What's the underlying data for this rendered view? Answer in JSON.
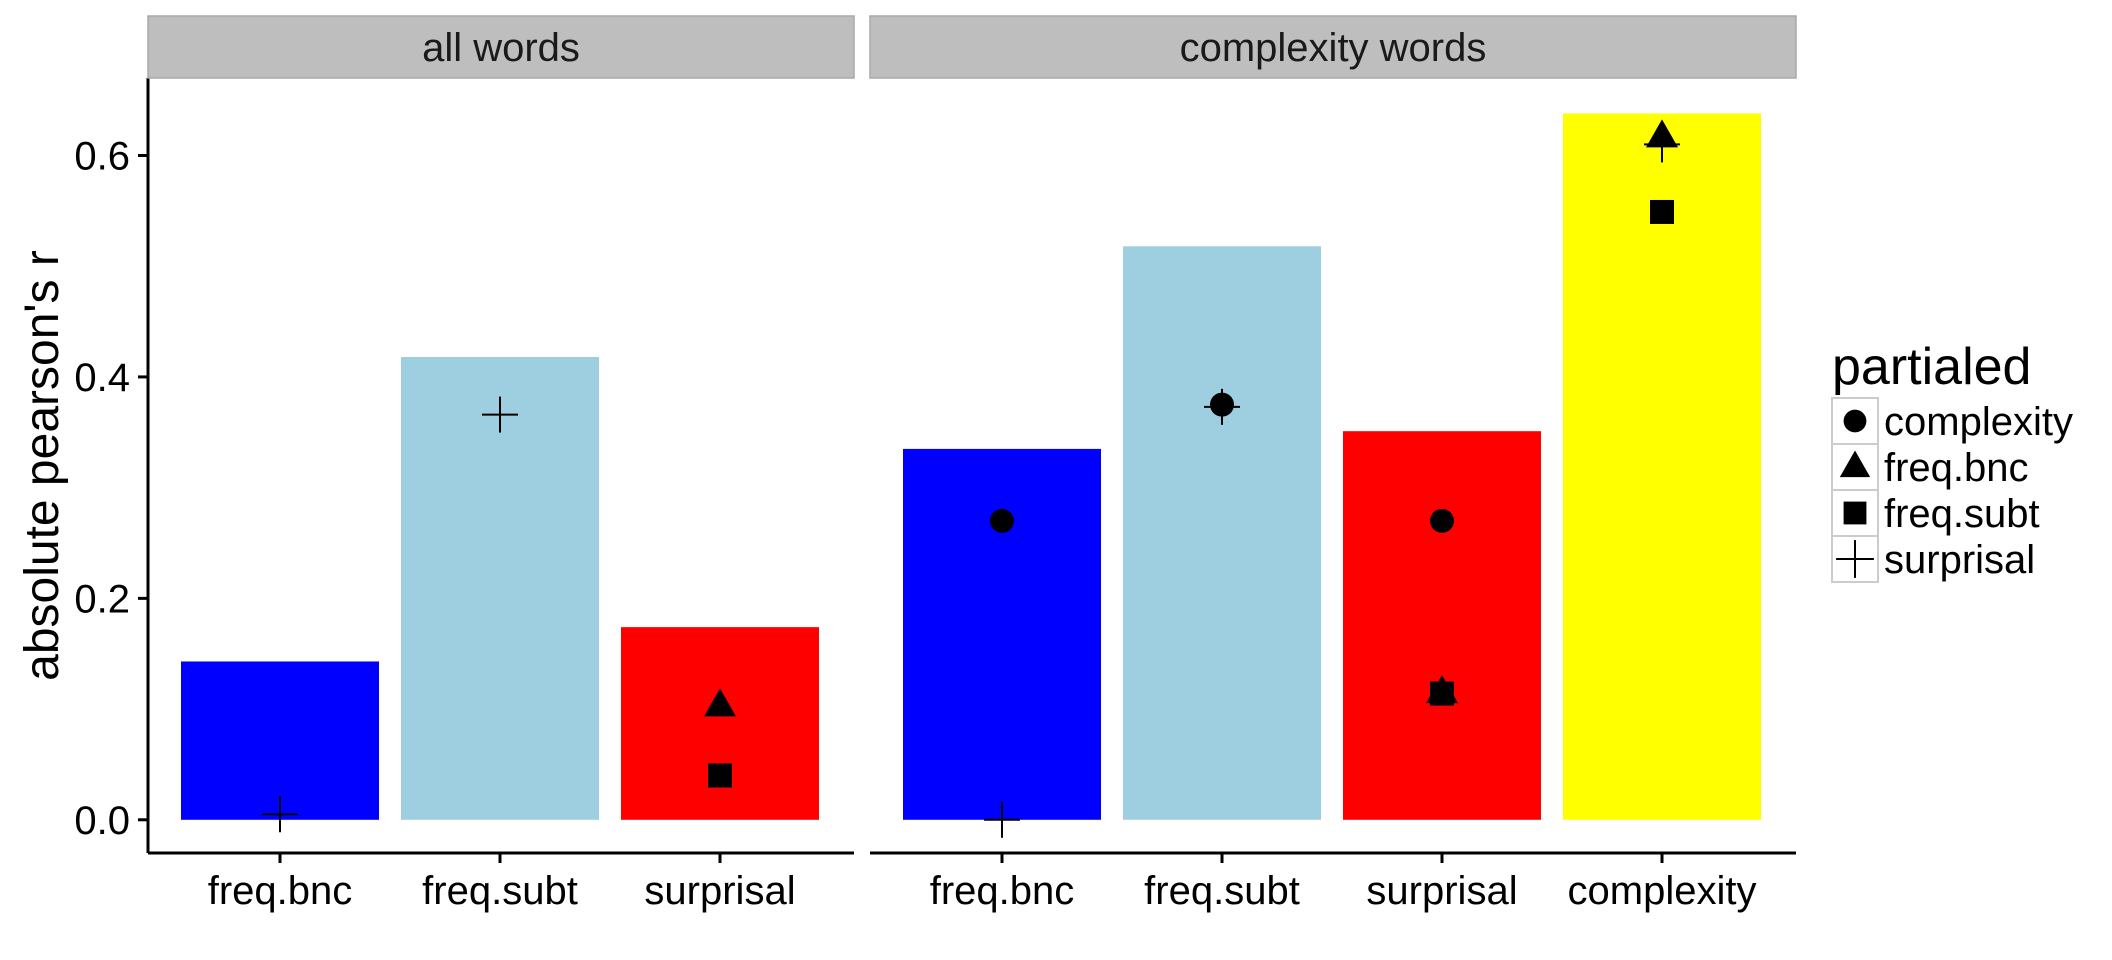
{
  "chart_data": {
    "type": "bar",
    "ylabel": "absolute pearson's r",
    "ylim": [
      -0.03,
      0.67
    ],
    "yticks": [
      0.0,
      0.2,
      0.4,
      0.6
    ],
    "ytick_labels": [
      "0.0",
      "0.2",
      "0.4",
      "0.6"
    ],
    "grid": false,
    "legend": {
      "title": "partialed",
      "placement": "right",
      "entries": [
        {
          "label": "complexity",
          "shape": "circle"
        },
        {
          "label": "freq.bnc",
          "shape": "triangle"
        },
        {
          "label": "freq.subt",
          "shape": "square"
        },
        {
          "label": "surprisal",
          "shape": "plus"
        }
      ]
    },
    "bar_colors": {
      "freq.bnc": "#0000FF",
      "freq.subt": "#9ECFE0",
      "surprisal": "#FF0000",
      "complexity": "#FFFF00"
    },
    "panels": [
      {
        "title": "all words",
        "categories": [
          "freq.bnc",
          "freq.subt",
          "surprisal"
        ],
        "values": [
          0.143,
          0.418,
          0.174
        ],
        "points": [
          {
            "category": "freq.bnc",
            "partialed": "surprisal",
            "value": 0.005
          },
          {
            "category": "freq.subt",
            "partialed": "surprisal",
            "value": 0.366
          },
          {
            "category": "surprisal",
            "partialed": "freq.bnc",
            "value": 0.103
          },
          {
            "category": "surprisal",
            "partialed": "freq.subt",
            "value": 0.04
          }
        ]
      },
      {
        "title": "complexity words",
        "categories": [
          "freq.bnc",
          "freq.subt",
          "surprisal",
          "complexity"
        ],
        "values": [
          0.335,
          0.518,
          0.351,
          0.638
        ],
        "points": [
          {
            "category": "freq.bnc",
            "partialed": "complexity",
            "value": 0.27
          },
          {
            "category": "freq.bnc",
            "partialed": "surprisal",
            "value": 0.0
          },
          {
            "category": "freq.subt",
            "partialed": "complexity",
            "value": 0.375
          },
          {
            "category": "freq.subt",
            "partialed": "surprisal",
            "value": 0.373
          },
          {
            "category": "surprisal",
            "partialed": "complexity",
            "value": 0.27
          },
          {
            "category": "surprisal",
            "partialed": "freq.bnc",
            "value": 0.115
          },
          {
            "category": "surprisal",
            "partialed": "freq.subt",
            "value": 0.114
          },
          {
            "category": "complexity",
            "partialed": "freq.bnc",
            "value": 0.617
          },
          {
            "category": "complexity",
            "partialed": "freq.subt",
            "value": 0.549
          },
          {
            "category": "complexity",
            "partialed": "surprisal",
            "value": 0.61
          }
        ]
      }
    ]
  }
}
